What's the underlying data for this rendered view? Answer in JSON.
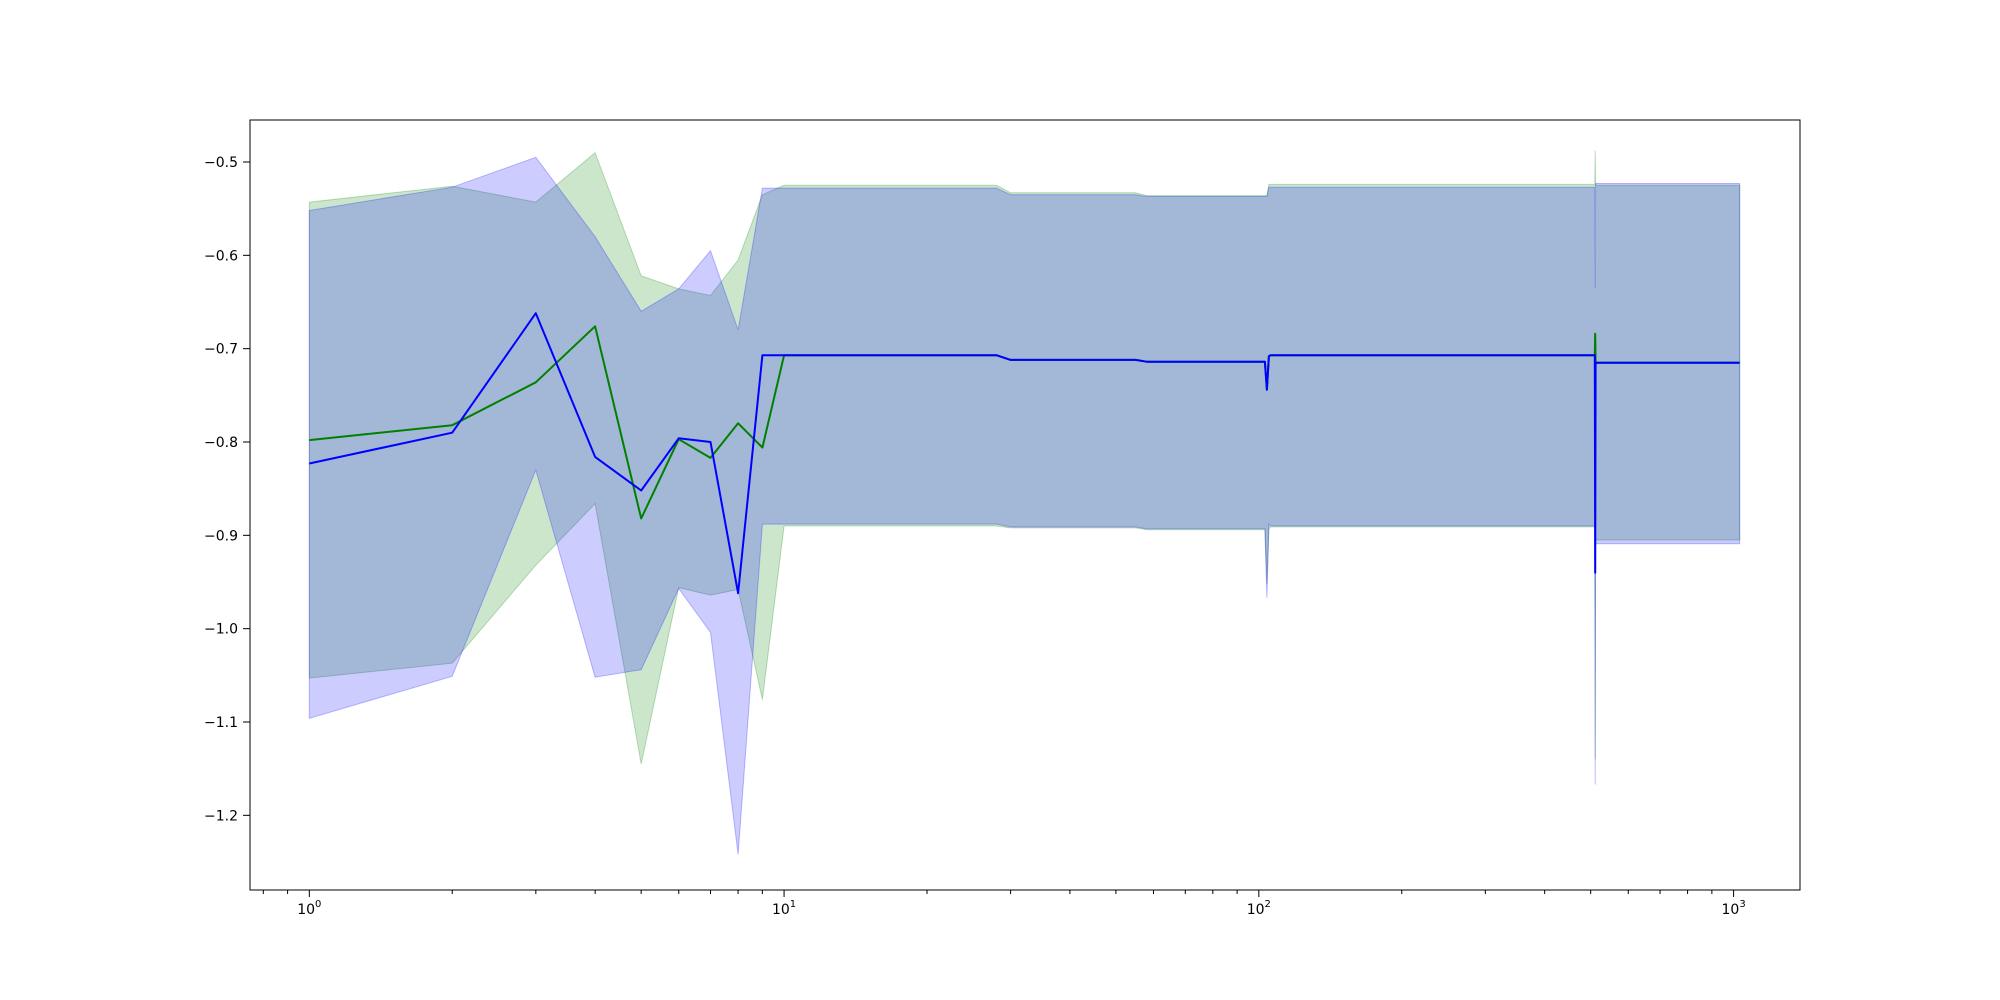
{
  "chart_data": {
    "type": "line",
    "x_scale": "log",
    "xlim": [
      0.75,
      1380
    ],
    "ylim": [
      -1.28,
      -0.455
    ],
    "grid": false,
    "x_ticks": [
      {
        "value": 1,
        "base": "10",
        "exp": "0"
      },
      {
        "value": 10,
        "base": "10",
        "exp": "1"
      },
      {
        "value": 100,
        "base": "10",
        "exp": "2"
      },
      {
        "value": 1000,
        "base": "10",
        "exp": "3"
      }
    ],
    "y_ticks": [
      {
        "value": -0.5,
        "label": "−0.5"
      },
      {
        "value": -0.6,
        "label": "−0.6"
      },
      {
        "value": -0.7,
        "label": "−0.7"
      },
      {
        "value": -0.8,
        "label": "−0.8"
      },
      {
        "value": -0.9,
        "label": "−0.9"
      },
      {
        "value": -1.0,
        "label": "−1.0"
      },
      {
        "value": -1.1,
        "label": "−1.1"
      },
      {
        "value": -1.2,
        "label": "−1.2"
      }
    ],
    "series": [
      {
        "color": "#008000",
        "band_color": "#008000",
        "band_opacity": 0.2,
        "x": [
          1,
          2,
          3,
          4,
          5,
          6,
          7,
          8,
          9,
          10,
          28,
          30,
          55,
          58,
          103,
          104,
          105,
          106,
          510,
          511,
          512,
          1030
        ],
        "y": [
          -0.798,
          -0.782,
          -0.736,
          -0.676,
          -0.882,
          -0.797,
          -0.817,
          -0.78,
          -0.806,
          -0.707,
          -0.707,
          -0.712,
          -0.712,
          -0.714,
          -0.714,
          -0.744,
          -0.708,
          -0.707,
          -0.707,
          -0.684,
          -0.715,
          -0.715
        ],
        "lower": [
          -1.053,
          -1.037,
          -0.932,
          -0.866,
          -1.145,
          -0.956,
          -0.964,
          -0.958,
          -1.076,
          -0.89,
          -0.89,
          -0.892,
          -0.892,
          -0.894,
          -0.894,
          -0.952,
          -0.893,
          -0.891,
          -0.891,
          -1.14,
          -0.905,
          -0.905
        ],
        "upper": [
          -0.543,
          -0.526,
          -0.543,
          -0.49,
          -0.622,
          -0.636,
          -0.643,
          -0.605,
          -0.535,
          -0.525,
          -0.525,
          -0.533,
          -0.533,
          -0.536,
          -0.536,
          -0.536,
          -0.524,
          -0.524,
          -0.524,
          -0.488,
          -0.525,
          -0.525
        ]
      },
      {
        "color": "#0000ff",
        "band_color": "#0000ff",
        "band_opacity": 0.2,
        "x": [
          1,
          2,
          3,
          4,
          5,
          6,
          7,
          8,
          9,
          10,
          28,
          30,
          55,
          58,
          103,
          104,
          105,
          106,
          510,
          511,
          512,
          1030
        ],
        "y": [
          -0.823,
          -0.79,
          -0.662,
          -0.816,
          -0.852,
          -0.796,
          -0.8,
          -0.962,
          -0.707,
          -0.707,
          -0.707,
          -0.712,
          -0.712,
          -0.714,
          -0.714,
          -0.744,
          -0.708,
          -0.707,
          -0.707,
          -0.94,
          -0.715,
          -0.715
        ],
        "lower": [
          -1.096,
          -1.051,
          -0.83,
          -1.052,
          -1.044,
          -0.957,
          -1.004,
          -1.242,
          -0.888,
          -0.888,
          -0.888,
          -0.891,
          -0.891,
          -0.893,
          -0.893,
          -0.967,
          -0.888,
          -0.89,
          -0.89,
          -1.167,
          -0.909,
          -0.909
        ],
        "upper": [
          -0.552,
          -0.527,
          -0.495,
          -0.58,
          -0.66,
          -0.636,
          -0.595,
          -0.68,
          -0.528,
          -0.528,
          -0.528,
          -0.535,
          -0.535,
          -0.537,
          -0.537,
          -0.537,
          -0.527,
          -0.527,
          -0.527,
          -0.635,
          -0.523,
          -0.523
        ]
      }
    ]
  }
}
